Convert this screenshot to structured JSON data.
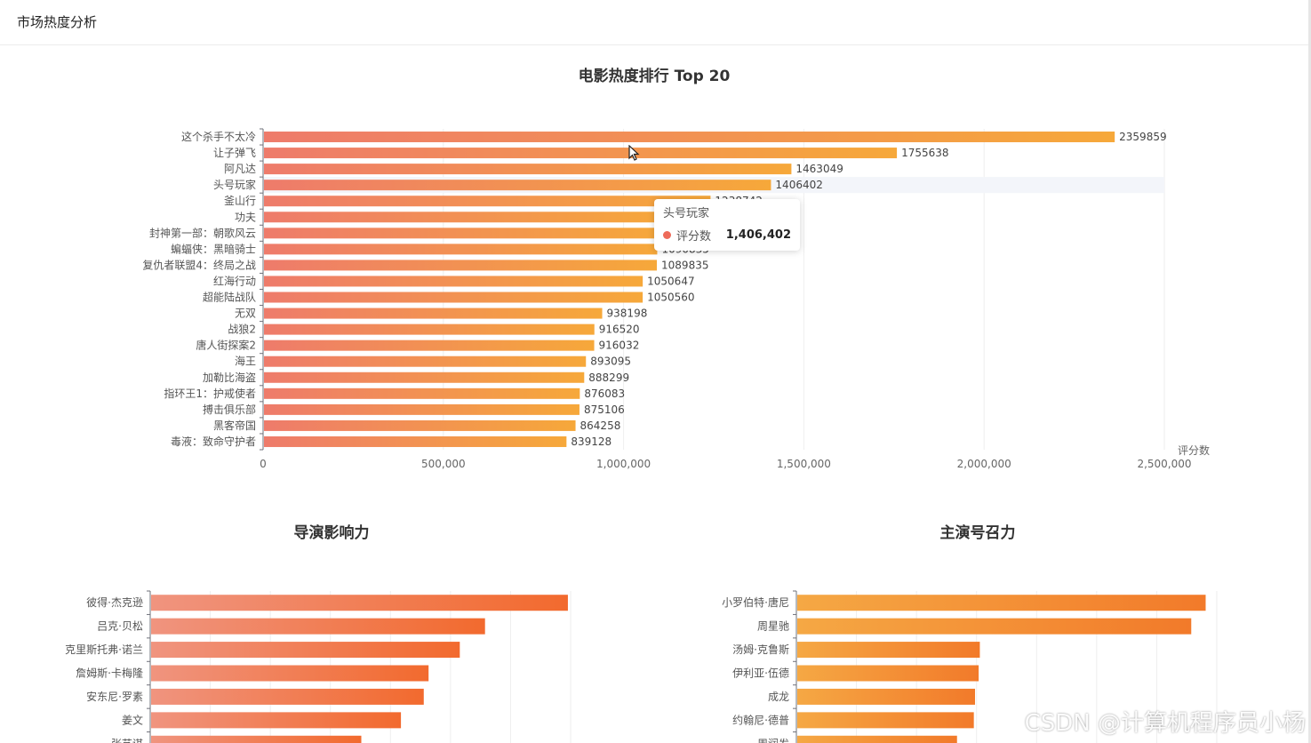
{
  "header": {
    "title": "市场热度分析"
  },
  "tooltip": {
    "title": "头号玩家",
    "series": "评分数",
    "value": "1,406,402"
  },
  "watermark": "CSDN @计算机程序员小杨",
  "chart_data": [
    {
      "id": "movie",
      "type": "bar",
      "orientation": "horizontal",
      "title": "电影热度排行 Top 20",
      "xlabel": "评分数",
      "xlim": [
        0,
        2500000
      ],
      "xticks": [
        0,
        500000,
        1000000,
        1500000,
        2000000,
        2500000
      ],
      "xtick_labels": [
        "0",
        "500,000",
        "1,000,000",
        "1,500,000",
        "2,000,000",
        "2,500,000"
      ],
      "categories": [
        "这个杀手不太冷",
        "让子弹飞",
        "阿凡达",
        "头号玩家",
        "釜山行",
        "功夫",
        "封神第一部：朝歌风云",
        "蝙蝠侠：黑暗骑士",
        "复仇者联盟4：终局之战",
        "红海行动",
        "超能陆战队",
        "无双",
        "战狼2",
        "唐人街探案2",
        "海王",
        "加勒比海盗",
        "指环王1：护戒使者",
        "搏击俱乐部",
        "黑客帝国",
        "毒液：致命守护者"
      ],
      "values": [
        2359859,
        1755638,
        1463049,
        1406402,
        1238742,
        1130000,
        1110000,
        1090835,
        1089835,
        1050647,
        1050560,
        938198,
        916520,
        916032,
        893095,
        888299,
        876083,
        875106,
        864258,
        839128
      ],
      "value_labels": [
        "2359859",
        "1755638",
        "1463049",
        "1406402",
        "1238742",
        "",
        "",
        "1090835",
        "1089835",
        "1050647",
        "1050560",
        "938198",
        "916520",
        "916032",
        "893095",
        "888299",
        "876083",
        "875106",
        "864258",
        "839128"
      ],
      "highlighted_category": "头号玩家",
      "colors": [
        "#ee7b6b",
        "#f6a83a"
      ]
    },
    {
      "id": "director",
      "type": "bar",
      "orientation": "horizontal",
      "title": "导演影响力",
      "xlim": [
        0,
        3.5
      ],
      "categories": [
        "彼得·杰克逊",
        "吕克·贝松",
        "克里斯托弗·诺兰",
        "詹姆斯·卡梅隆",
        "安东尼·罗素",
        "姜文",
        "张艺谋"
      ],
      "values": [
        3.47,
        2.78,
        2.57,
        2.31,
        2.27,
        2.08,
        1.75
      ],
      "colors": [
        "#f0947f",
        "#f26a2e"
      ]
    },
    {
      "id": "actor",
      "type": "bar",
      "orientation": "horizontal",
      "title": "主演号召力",
      "xlim": [
        0,
        3.5
      ],
      "categories": [
        "小罗伯特·唐尼",
        "周星驰",
        "汤姆·克鲁斯",
        "伊利亚·伍德",
        "成龙",
        "约翰尼·德普",
        "周润发"
      ],
      "values": [
        3.4,
        3.28,
        1.52,
        1.51,
        1.48,
        1.47,
        1.33
      ],
      "colors": [
        "#f5a844",
        "#f27a2a"
      ]
    }
  ]
}
